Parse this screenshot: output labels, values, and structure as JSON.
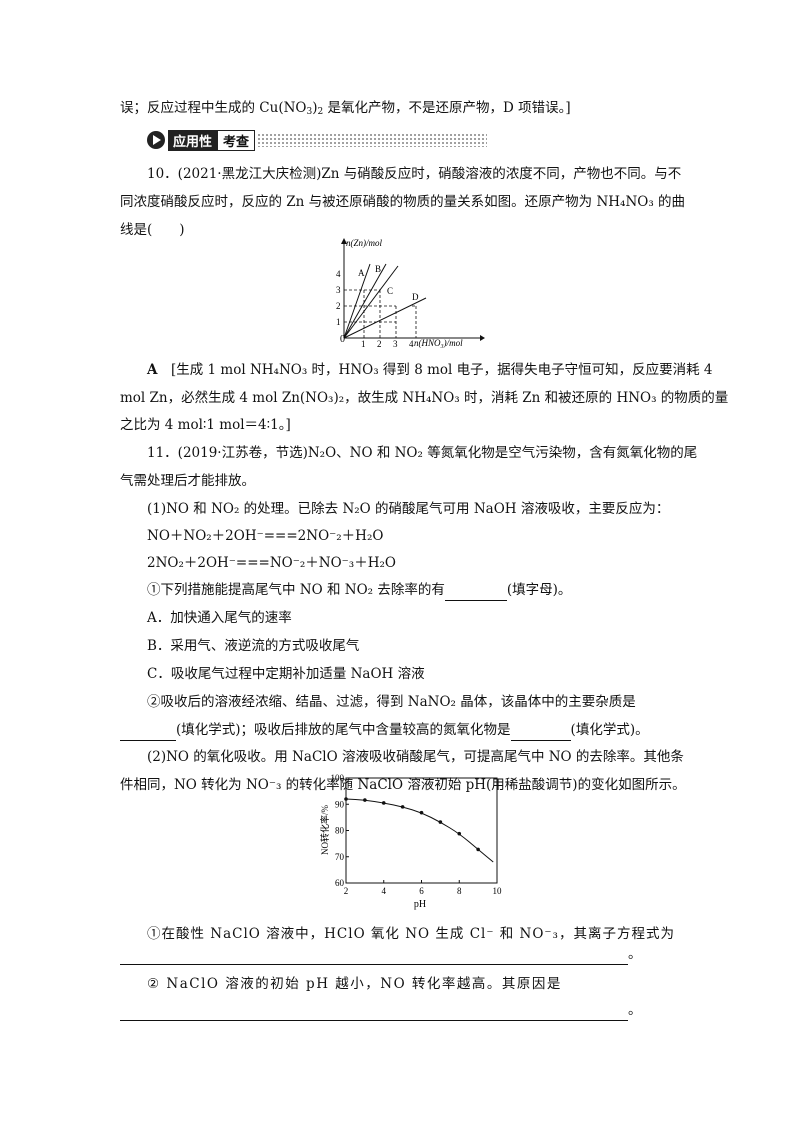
{
  "intro_line": {
    "part1": "误；反应过程中生成的 Cu(NO",
    "sub1": "3",
    "part2": ")",
    "sub2": "2",
    "part3": " 是氧化产物，不是还原产物，D 项错误。]"
  },
  "banner": {
    "label1": "应用性",
    "label2": "考查"
  },
  "q10": {
    "line1": "10．(2021·黑龙江大庆检测)Zn 与硝酸反应时，硝酸溶液的浓度不同，产物也不同。与不",
    "line2": "同浓度硝酸反应时，反应的 Zn 与被还原硝酸的物质的量关系如图。还原产物为 NH₄NO₃ 的曲",
    "line3": "线是(　　)"
  },
  "chart1": {
    "ylabel": "n(Zn)/mol",
    "xlabel": "n(HNO₃)/mol",
    "origin": "0",
    "yticks": [
      "1",
      "2",
      "3",
      "4"
    ],
    "xticks": [
      "1",
      "2",
      "3",
      "4"
    ],
    "curves": [
      "A",
      "B",
      "C",
      "D"
    ]
  },
  "ans10": {
    "line1_bold": "A",
    "line1": "　[生成 1 mol NH₄NO₃ 时，HNO₃ 得到 8 mol 电子，据得失电子守恒可知，反应要消耗 4",
    "line2": "mol Zn，必然生成 4 mol Zn(NO₃)₂，故生成 NH₄NO₃ 时，消耗 Zn 和被还原的 HNO₃ 的物质的量",
    "line3": "之比为 4 mol∶1 mol＝4∶1。]"
  },
  "q11": {
    "line1": "11．(2019·江苏卷，节选)N₂O、NO 和 NO₂ 等氮氧化物是空气污染物，含有氮氧化物的尾",
    "line2": "气需处理后才能排放。",
    "p1": "(1)NO 和 NO₂ 的处理。已除去 N₂O 的硝酸尾气可用 NaOH 溶液吸收，主要反应为：",
    "eq1": "NO＋NO₂＋2OH⁻===2NO⁻₂＋H₂O",
    "eq2": "2NO₂＋2OH⁻===NO⁻₂＋NO⁻₃＋H₂O",
    "q1_pre": "①下列措施能提高尾气中 NO 和 NO₂ 去除率的有",
    "q1_post": "(填字母)。",
    "optA": "A．加快通入尾气的速率",
    "optB": "B．采用气、液逆流的方式吸收尾气",
    "optC": "C．吸收尾气过程中定期补加适量 NaOH 溶液",
    "q2_line1": "②吸收后的溶液经浓缩、结晶、过滤，得到 NaNO₂ 晶体，该晶体中的主要杂质是",
    "q2_mid": "(填化学式)；吸收后排放的尾气中含量较高的氮氧化物是",
    "q2_post": "(填化学式)。",
    "p2_line1": "(2)NO 的氧化吸收。用 NaClO 溶液吸收硝酸尾气，可提高尾气中 NO 的去除率。其他条",
    "p2_line2": "件相同，NO 转化为 NO⁻₃ 的转化率随 NaClO 溶液初始 pH(用稀盐酸调节)的变化如图所示。",
    "sub1": "①在酸性 NaClO 溶液中，HClO 氧化 NO 生成 Cl⁻ 和 NO⁻₃，其离子方程式为",
    "end1": "。",
    "sub2": "② NaClO 溶液的初始 pH 越小，NO 转化率越高。其原因是",
    "end2": "。"
  },
  "chart_data": {
    "type": "line",
    "ylabel": "NO转化率/%",
    "xlabel": "pH",
    "xlim": [
      2,
      10
    ],
    "ylim": [
      60,
      100
    ],
    "xticks": [
      "2",
      "4",
      "6",
      "8",
      "10"
    ],
    "yticks": [
      "60",
      "70",
      "80",
      "90",
      "100"
    ],
    "x": [
      2,
      3,
      4,
      5,
      6,
      7,
      8,
      9
    ],
    "y": [
      92,
      91.6,
      90.5,
      89,
      86.8,
      83.2,
      78.8,
      72.8
    ],
    "curve_end": [
      9.8,
      68
    ]
  }
}
